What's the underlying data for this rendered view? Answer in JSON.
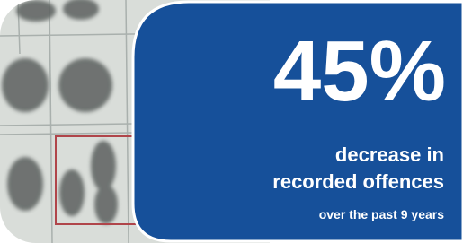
{
  "headline": "45%",
  "subtitle": [
    "decrease in",
    "recorded offences"
  ],
  "footnote": "over the past 9 years"
}
